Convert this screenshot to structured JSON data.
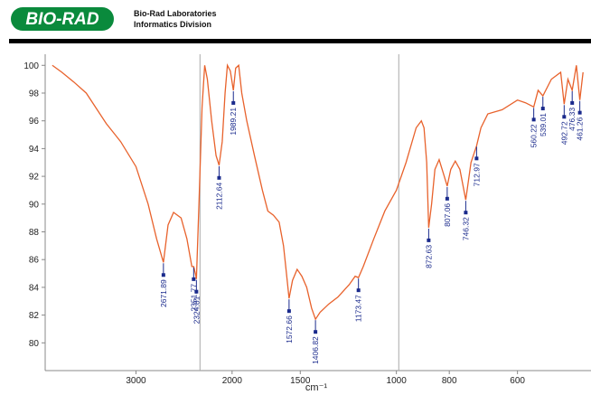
{
  "header": {
    "logo": "BIO-RAD",
    "company": "Bio-Rad Laboratories",
    "division": "Informatics Division"
  },
  "chart_data": {
    "type": "line",
    "x_label": "cm⁻¹",
    "xscale": "log",
    "xlim": [
      4400,
      440
    ],
    "xticks": [
      3000,
      2000,
      1500,
      1000,
      800,
      600
    ],
    "ylim": [
      78,
      100.8
    ],
    "yticks": [
      80,
      82,
      84,
      86,
      88,
      90,
      92,
      94,
      96,
      98,
      100
    ],
    "vlines": [
      2290,
      990
    ],
    "x": [
      4270,
      4100,
      3900,
      3700,
      3400,
      3200,
      3000,
      2850,
      2750,
      2671.89,
      2620,
      2560,
      2480,
      2420,
      2370,
      2351.77,
      2335,
      2324.81,
      2300,
      2270,
      2245,
      2220,
      2180,
      2140,
      2112.64,
      2085,
      2060,
      2040,
      2015,
      1989.21,
      1970,
      1945,
      1920,
      1880,
      1820,
      1760,
      1720,
      1680,
      1640,
      1610,
      1590,
      1572.66,
      1550,
      1520,
      1490,
      1460,
      1430,
      1406.82,
      1380,
      1330,
      1280,
      1220,
      1190,
      1173.47,
      1150,
      1100,
      1050,
      1000,
      960,
      920,
      900,
      890,
      880,
      872.63,
      862,
      850,
      835,
      820,
      807.06,
      795,
      780,
      765,
      746.32,
      730,
      712.97,
      700,
      680,
      640,
      600,
      580,
      560.22,
      550,
      539.01,
      520,
      500,
      492.72,
      485,
      476.33,
      468,
      461.26,
      455
    ],
    "series": [
      {
        "color": "#e8622c",
        "values": [
          100,
          99.5,
          98.8,
          98,
          95.8,
          94.5,
          92.7,
          90,
          87.5,
          85.8,
          88.5,
          89.4,
          89,
          87.5,
          85.5,
          85.5,
          85,
          84.6,
          90,
          97,
          100,
          99,
          96,
          93.5,
          92.8,
          94.5,
          98,
          100,
          99.6,
          98.2,
          99.8,
          100,
          98,
          96,
          93.5,
          91,
          89.5,
          89.2,
          88.7,
          87,
          85,
          83.2,
          84.5,
          85.3,
          84.8,
          84,
          82.5,
          81.7,
          82.2,
          82.8,
          83.3,
          84.2,
          84.8,
          84.7,
          85.5,
          87.5,
          89.5,
          91,
          93,
          95.5,
          96,
          95.5,
          93,
          88.3,
          90,
          92.5,
          93.2,
          92.2,
          91.3,
          92.5,
          93.1,
          92.5,
          90.3,
          93,
          94.2,
          95.5,
          96.5,
          96.8,
          97.5,
          97.3,
          97,
          98.2,
          97.8,
          99,
          99.5,
          97.2,
          99,
          98.2,
          100,
          97.5,
          99.5
        ]
      }
    ],
    "peaks": [
      {
        "x": 2671.89,
        "y": 85.8
      },
      {
        "x": 2351.77,
        "y": 85.5
      },
      {
        "x": 2324.81,
        "y": 84.6
      },
      {
        "x": 2112.64,
        "y": 92.8
      },
      {
        "x": 1989.21,
        "y": 98.2
      },
      {
        "x": 1572.66,
        "y": 83.2
      },
      {
        "x": 1406.82,
        "y": 81.7
      },
      {
        "x": 1173.47,
        "y": 84.7
      },
      {
        "x": 872.63,
        "y": 88.3
      },
      {
        "x": 807.06,
        "y": 91.3
      },
      {
        "x": 746.32,
        "y": 90.3
      },
      {
        "x": 712.97,
        "y": 94.2
      },
      {
        "x": 560.22,
        "y": 97
      },
      {
        "x": 539.01,
        "y": 97.8
      },
      {
        "x": 492.72,
        "y": 97.2
      },
      {
        "x": 476.33,
        "y": 98.2
      },
      {
        "x": 461.26,
        "y": 97.5
      }
    ]
  }
}
